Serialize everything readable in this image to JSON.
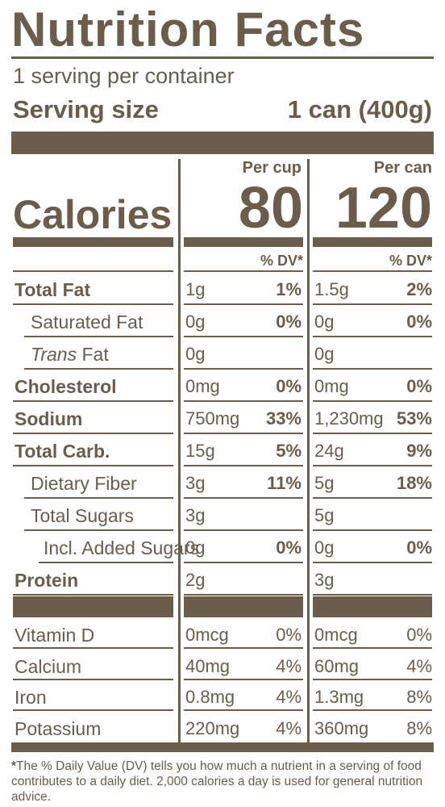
{
  "title": "Nutrition Facts",
  "servings_per_container": "1 serving per container",
  "serving_size": {
    "label": "Serving size",
    "value": "1 can (400g)"
  },
  "calories": {
    "label": "Calories",
    "per_cup_heading": "Per cup",
    "per_cup": "80",
    "per_can_heading": "Per can",
    "per_can": "120"
  },
  "dv_heading": "% DV*",
  "nutrients": [
    {
      "name": "Total Fat",
      "bold": true,
      "indent": 0,
      "cup_amt": "1g",
      "cup_dv": "1%",
      "can_amt": "1.5g",
      "can_dv": "2%"
    },
    {
      "name": "Saturated Fat",
      "bold": false,
      "indent": 1,
      "cup_amt": "0g",
      "cup_dv": "0%",
      "can_amt": "0g",
      "can_dv": "0%"
    },
    {
      "name_italic": "Trans",
      "name": " Fat",
      "bold": false,
      "indent": 1,
      "cup_amt": "0g",
      "cup_dv": "",
      "can_amt": "0g",
      "can_dv": ""
    },
    {
      "name": "Cholesterol",
      "bold": true,
      "indent": 0,
      "cup_amt": "0mg",
      "cup_dv": "0%",
      "can_amt": "0mg",
      "can_dv": "0%"
    },
    {
      "name": "Sodium",
      "bold": true,
      "indent": 0,
      "cup_amt": "750mg",
      "cup_dv": "33%",
      "can_amt": "1,230mg",
      "can_dv": "53%"
    },
    {
      "name": "Total Carb.",
      "bold": true,
      "indent": 0,
      "cup_amt": "15g",
      "cup_dv": "5%",
      "can_amt": "24g",
      "can_dv": "9%"
    },
    {
      "name": "Dietary Fiber",
      "bold": false,
      "indent": 1,
      "cup_amt": "3g",
      "cup_dv": "11%",
      "can_amt": "5g",
      "can_dv": "18%"
    },
    {
      "name": "Total Sugars",
      "bold": false,
      "indent": 1,
      "cup_amt": "3g",
      "cup_dv": "",
      "can_amt": "5g",
      "can_dv": ""
    },
    {
      "name": "Incl. Added Sugars",
      "bold": false,
      "indent": 2,
      "cup_amt": "0g",
      "cup_dv": "0%",
      "can_amt": "0g",
      "can_dv": "0%"
    },
    {
      "name": "Protein",
      "bold": true,
      "indent": 0,
      "cup_amt": "2g",
      "cup_dv": "",
      "can_amt": "3g",
      "can_dv": ""
    }
  ],
  "vitamins": [
    {
      "name": "Vitamin D",
      "cup_amt": "0mcg",
      "cup_dv": "0%",
      "can_amt": "0mcg",
      "can_dv": "0%"
    },
    {
      "name": "Calcium",
      "cup_amt": "40mg",
      "cup_dv": "4%",
      "can_amt": "60mg",
      "can_dv": "4%"
    },
    {
      "name": "Iron",
      "cup_amt": "0.8mg",
      "cup_dv": "4%",
      "can_amt": "1.3mg",
      "can_dv": "8%"
    },
    {
      "name": "Potassium",
      "cup_amt": "220mg",
      "cup_dv": "4%",
      "can_amt": "360mg",
      "can_dv": "8%"
    }
  ],
  "footnote": {
    "star": "*",
    "text": "The % Daily Value (DV) tells you how much a nutrient in a serving of food contributes to a daily diet. 2,000 calories a day is used for general nutrition advice."
  },
  "colors": {
    "ink": "#6b5c4c",
    "background": "#ffffff"
  }
}
